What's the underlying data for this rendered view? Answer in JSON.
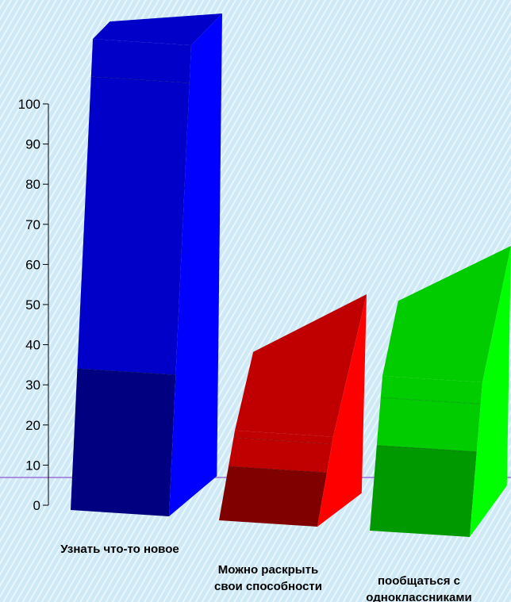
{
  "chart_data": {
    "type": "bar",
    "categories": [
      "Узнать что-то новое",
      "Можно раскрыть свои способности",
      "пообщаться с одноклассниками"
    ],
    "category_lines": [
      [
        "Узнать что-то новое"
      ],
      [
        "Можно раскрыть",
        "свои способности"
      ],
      [
        "пообщаться с",
        "одноклассниками"
      ]
    ],
    "values": [
      100,
      45,
      62
    ],
    "stack_colors": [
      [
        "#000080",
        "#0000c8",
        "#0000ff"
      ],
      [
        "#800000",
        "#c00000",
        "#ff0000"
      ],
      [
        "#009900",
        "#00cc00",
        "#00ff00"
      ]
    ],
    "ylim": [
      0,
      100
    ],
    "yticks": [
      0,
      10,
      20,
      30,
      40,
      50,
      60,
      70,
      80,
      90,
      100
    ],
    "reference_line_color": "#9a6fd8",
    "grid": false
  }
}
